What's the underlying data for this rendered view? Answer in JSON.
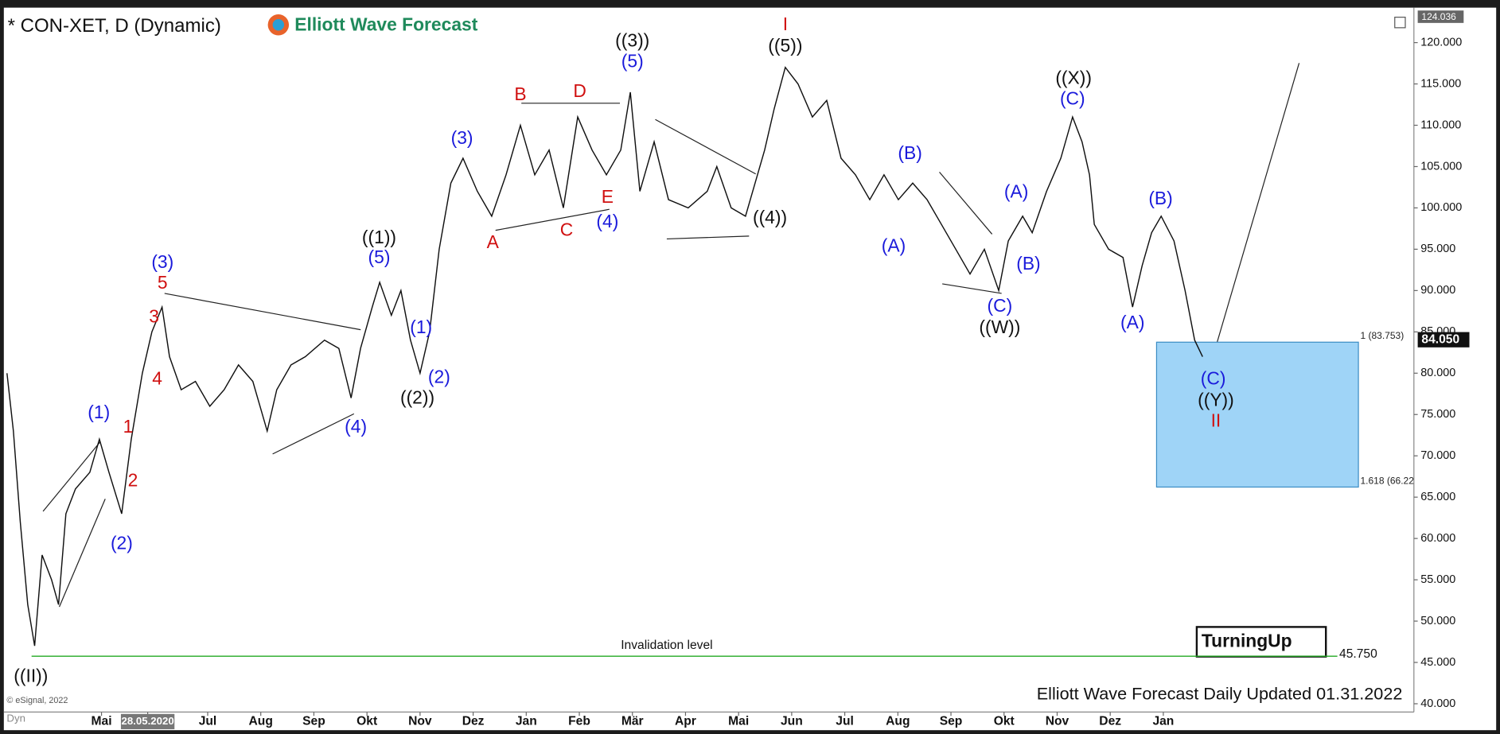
{
  "chart_data": {
    "type": "line",
    "title": "* CON-XET, D (Dynamic)",
    "logo": "Elliott Wave Forecast",
    "footer": "Elliott Wave Forecast Daily Updated 01.31.2022",
    "copyright": "© eSignal, 2022",
    "badge": "TurningUp",
    "corner": "Dyn",
    "color": "#111111",
    "x": [
      -1.78,
      -1.66,
      -1.53,
      -1.39,
      -1.26,
      -1.12,
      -0.94,
      -0.81,
      -0.67,
      -0.49,
      -0.22,
      -0.04,
      0.14,
      0.38,
      0.56,
      0.77,
      0.95,
      1.14,
      1.28,
      1.5,
      1.77,
      2.04,
      2.31,
      2.58,
      2.85,
      3.12,
      3.3,
      3.57,
      3.84,
      4.2,
      4.47,
      4.7,
      4.88,
      5.1,
      5.24,
      5.46,
      5.64,
      5.82,
      6.0,
      6.18,
      6.36,
      6.58,
      6.81,
      7.08,
      7.35,
      7.62,
      7.89,
      8.16,
      8.43,
      8.7,
      8.97,
      9.24,
      9.51,
      9.78,
      9.96,
      10.14,
      10.41,
      10.68,
      11.05,
      11.41,
      11.59,
      11.86,
      12.13,
      12.31,
      12.49,
      12.67,
      12.88,
      13.12,
      13.39,
      13.66,
      13.93,
      14.2,
      14.47,
      14.74,
      15.01,
      15.28,
      15.55,
      15.82,
      16.09,
      16.36,
      16.63,
      16.9,
      17.08,
      17.35,
      17.53,
      17.8,
      18.07,
      18.29,
      18.47,
      18.61,
      18.7,
      18.97,
      19.24,
      19.42,
      19.6,
      19.78,
      19.96,
      20.2,
      20.41,
      20.59,
      20.74
    ],
    "values": [
      80,
      73,
      62,
      52,
      47,
      58,
      55,
      52,
      63,
      66,
      68,
      72,
      68,
      63,
      72,
      80,
      85,
      88,
      82,
      78,
      79,
      76,
      78,
      81,
      79,
      73,
      78,
      81,
      82,
      84,
      83,
      77,
      83,
      88,
      91,
      87,
      90,
      84,
      80,
      85,
      95,
      103,
      106,
      102,
      99,
      104,
      110,
      104,
      107,
      100,
      111,
      107,
      104,
      107,
      114,
      102,
      108,
      101,
      100,
      102,
      105,
      100,
      99,
      103,
      107,
      112,
      117,
      115,
      111,
      113,
      106,
      104,
      101,
      104,
      101,
      103,
      101,
      98,
      95,
      92,
      95,
      90,
      96,
      99,
      97,
      102,
      106,
      111,
      108,
      104,
      98,
      95,
      94,
      88,
      93,
      97,
      99,
      96,
      90,
      84,
      82
    ],
    "xlim": [
      -1.84,
      24.72
    ],
    "ylim": [
      39,
      124
    ],
    "xticks": [
      {
        "value": 0,
        "label": "Mai"
      },
      {
        "value": 0.87,
        "label": "28.05.2020"
      },
      {
        "value": 2,
        "label": "Jul"
      },
      {
        "value": 3,
        "label": "Aug"
      },
      {
        "value": 4,
        "label": "Sep"
      },
      {
        "value": 5,
        "label": "Okt"
      },
      {
        "value": 6,
        "label": "Nov"
      },
      {
        "value": 7,
        "label": "Dez"
      },
      {
        "value": 8,
        "label": "Jan"
      },
      {
        "value": 9,
        "label": "Feb"
      },
      {
        "value": 10,
        "label": "Mär"
      },
      {
        "value": 11,
        "label": "Apr"
      },
      {
        "value": 12,
        "label": "Mai"
      },
      {
        "value": 13,
        "label": "Jun"
      },
      {
        "value": 14,
        "label": "Jul"
      },
      {
        "value": 15,
        "label": "Aug"
      },
      {
        "value": 16,
        "label": "Sep"
      },
      {
        "value": 17,
        "label": "Okt"
      },
      {
        "value": 18,
        "label": "Nov"
      },
      {
        "value": 19,
        "label": "Dez"
      },
      {
        "value": 20,
        "label": "Jan"
      }
    ],
    "yticks": [
      {
        "value": 40,
        "label": "40.000"
      },
      {
        "value": 45,
        "label": "45.000"
      },
      {
        "value": 50,
        "label": "50.000"
      },
      {
        "value": 55,
        "label": "55.000"
      },
      {
        "value": 60,
        "label": "60.000"
      },
      {
        "value": 65,
        "label": "65.000"
      },
      {
        "value": 70,
        "label": "70.000"
      },
      {
        "value": 75,
        "label": "75.000"
      },
      {
        "value": 80,
        "label": "80.000"
      },
      {
        "value": 85,
        "label": "85.000"
      },
      {
        "value": 90,
        "label": "90.000"
      },
      {
        "value": 95,
        "label": "95.000"
      },
      {
        "value": 100,
        "label": "100.000"
      },
      {
        "value": 105,
        "label": "105.000"
      },
      {
        "value": 110,
        "label": "110.000"
      },
      {
        "value": 115,
        "label": "115.000"
      },
      {
        "value": 120,
        "label": "120.000"
      }
    ],
    "top_marker": {
      "value": 124.036,
      "label": "124.036"
    },
    "last_price": {
      "value": 84.05,
      "label": "84.050"
    },
    "invalidation": {
      "value": 45.75,
      "label": "45.750",
      "text": "Invalidation level",
      "color": "#22aa22"
    },
    "target_zone": {
      "color": "#9fd4f7",
      "levels": [
        {
          "value": 83.753,
          "label": "1 (83.753)"
        },
        {
          "value": 66.22,
          "label": "1.618 (66.22"
        }
      ]
    },
    "annotations": [
      {
        "text": "((II))",
        "x": -1.33,
        "y": 43.2,
        "color": "#111111"
      },
      {
        "text": "(1)",
        "x": -0.05,
        "y": 75.1,
        "color": "#1a1adb"
      },
      {
        "text": "(2)",
        "x": 0.38,
        "y": 59.3,
        "color": "#1a1adb"
      },
      {
        "text": "1",
        "x": 0.5,
        "y": 73.4,
        "color": "#d01010"
      },
      {
        "text": "2",
        "x": 0.59,
        "y": 66.9,
        "color": "#d01010"
      },
      {
        "text": "3",
        "x": 0.99,
        "y": 86.7,
        "color": "#d01010"
      },
      {
        "text": "4",
        "x": 1.05,
        "y": 79.2,
        "color": "#d01010"
      },
      {
        "text": "5",
        "x": 1.15,
        "y": 90.8,
        "color": "#d01010"
      },
      {
        "text": "(3)",
        "x": 1.15,
        "y": 93.3,
        "color": "#1a1adb"
      },
      {
        "text": "(4)",
        "x": 4.79,
        "y": 73.4,
        "color": "#1a1adb"
      },
      {
        "text": "(5)",
        "x": 5.23,
        "y": 93.9,
        "color": "#1a1adb"
      },
      {
        "text": "((1))",
        "x": 5.23,
        "y": 96.3,
        "color": "#111111"
      },
      {
        "text": "(1)",
        "x": 6.02,
        "y": 85.4,
        "color": "#1a1adb"
      },
      {
        "text": "(2)",
        "x": 6.36,
        "y": 79.4,
        "color": "#1a1adb"
      },
      {
        "text": "((2))",
        "x": 5.95,
        "y": 76.9,
        "color": "#111111"
      },
      {
        "text": "(3)",
        "x": 6.79,
        "y": 108.3,
        "color": "#1a1adb"
      },
      {
        "text": "A",
        "x": 7.37,
        "y": 95.7,
        "color": "#d01010"
      },
      {
        "text": "B",
        "x": 7.89,
        "y": 113.6,
        "color": "#d01010"
      },
      {
        "text": "C",
        "x": 8.76,
        "y": 97.2,
        "color": "#d01010"
      },
      {
        "text": "D",
        "x": 9.01,
        "y": 114.0,
        "color": "#d01010"
      },
      {
        "text": "E",
        "x": 9.53,
        "y": 101.2,
        "color": "#d01010"
      },
      {
        "text": "(4)",
        "x": 9.53,
        "y": 98.2,
        "color": "#1a1adb"
      },
      {
        "text": "(5)",
        "x": 10.0,
        "y": 117.6,
        "color": "#1a1adb"
      },
      {
        "text": "((3))",
        "x": 10.0,
        "y": 120.1,
        "color": "#111111"
      },
      {
        "text": "((4))",
        "x": 12.59,
        "y": 98.7,
        "color": "#111111"
      },
      {
        "text": "I",
        "x": 12.88,
        "y": 122.1,
        "color": "#d01010"
      },
      {
        "text": "((5))",
        "x": 12.88,
        "y": 119.5,
        "color": "#111111"
      },
      {
        "text": "(A)",
        "x": 14.92,
        "y": 95.3,
        "color": "#1a1adb"
      },
      {
        "text": "(B)",
        "x": 15.23,
        "y": 106.5,
        "color": "#1a1adb"
      },
      {
        "text": "(C)",
        "x": 16.92,
        "y": 88.0,
        "color": "#1a1adb"
      },
      {
        "text": "((W))",
        "x": 16.92,
        "y": 85.4,
        "color": "#111111"
      },
      {
        "text": "(A)",
        "x": 17.23,
        "y": 101.8,
        "color": "#1a1adb"
      },
      {
        "text": "(B)",
        "x": 17.46,
        "y": 93.1,
        "color": "#1a1adb"
      },
      {
        "text": "((X))",
        "x": 18.31,
        "y": 115.6,
        "color": "#111111"
      },
      {
        "text": "(C)",
        "x": 18.29,
        "y": 113.1,
        "color": "#1a1adb"
      },
      {
        "text": "(A)",
        "x": 19.42,
        "y": 86.0,
        "color": "#1a1adb"
      },
      {
        "text": "(B)",
        "x": 19.95,
        "y": 101.0,
        "color": "#1a1adb"
      },
      {
        "text": "(C)",
        "x": 20.94,
        "y": 79.2,
        "color": "#1a1adb"
      },
      {
        "text": "((Y))",
        "x": 20.99,
        "y": 76.6,
        "color": "#111111"
      },
      {
        "text": "II",
        "x": 20.99,
        "y": 74.1,
        "color": "#d01010"
      }
    ]
  }
}
